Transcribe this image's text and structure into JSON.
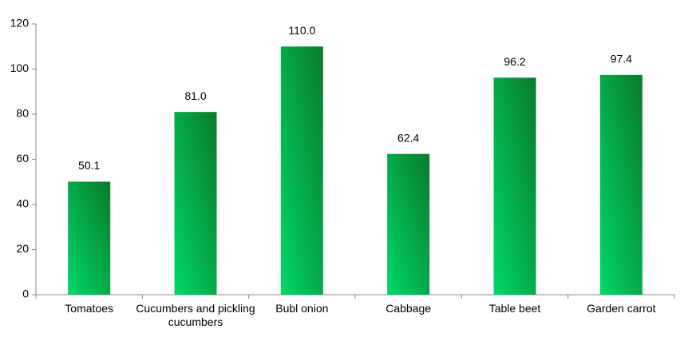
{
  "chart_data": {
    "type": "bar",
    "categories": [
      "Tomatoes",
      "Cucumbers and pickling cucumbers",
      "Bubl onion",
      "Cabbage",
      "Table beet",
      "Garden carrot"
    ],
    "values": [
      50.1,
      81.0,
      110.0,
      62.4,
      96.2,
      97.4
    ],
    "value_labels": [
      "50.1",
      "81.0",
      "110.0",
      "62.4",
      "96.2",
      "97.4"
    ],
    "color": "#0a7a2a",
    "ylim": [
      0,
      120
    ],
    "yticks": [
      0,
      20,
      40,
      60,
      80,
      100,
      120
    ],
    "grid": false
  }
}
